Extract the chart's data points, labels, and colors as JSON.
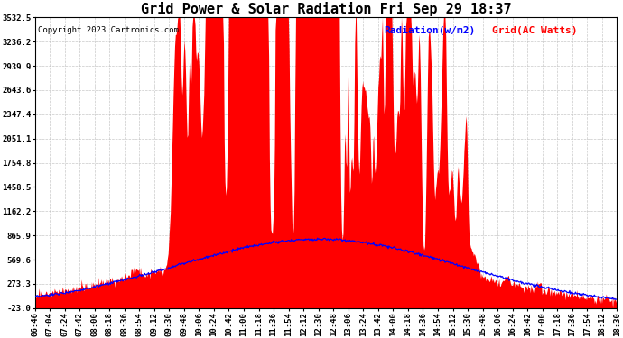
{
  "title": "Grid Power & Solar Radiation Fri Sep 29 18:37",
  "copyright": "Copyright 2023 Cartronics.com",
  "legend_radiation": "Radiation(w/m2)",
  "legend_grid": "Grid(AC Watts)",
  "yticks": [
    3532.5,
    3236.2,
    2939.9,
    2643.6,
    2347.4,
    2051.1,
    1754.8,
    1458.5,
    1162.2,
    865.9,
    569.6,
    273.3,
    -23.0
  ],
  "ymin": -23.0,
  "ymax": 3532.5,
  "xtick_labels": [
    "06:46",
    "07:04",
    "07:24",
    "07:42",
    "08:00",
    "08:18",
    "08:36",
    "08:54",
    "09:12",
    "09:30",
    "09:48",
    "10:06",
    "10:24",
    "10:42",
    "11:00",
    "11:18",
    "11:36",
    "11:54",
    "12:12",
    "12:30",
    "12:48",
    "13:06",
    "13:24",
    "13:42",
    "14:00",
    "14:18",
    "14:36",
    "14:54",
    "15:12",
    "15:30",
    "15:48",
    "16:06",
    "16:24",
    "16:42",
    "17:00",
    "17:18",
    "17:36",
    "17:54",
    "18:12",
    "18:30"
  ],
  "background_color": "#ffffff",
  "grid_color": "#bbbbbb",
  "radiation_color": "#0000ff",
  "grid_fill_color": "#ff0000",
  "title_fontsize": 11,
  "copyright_fontsize": 6.5,
  "legend_fontsize": 8,
  "tick_fontsize": 6.5,
  "figwidth": 6.9,
  "figheight": 3.75,
  "dpi": 100
}
